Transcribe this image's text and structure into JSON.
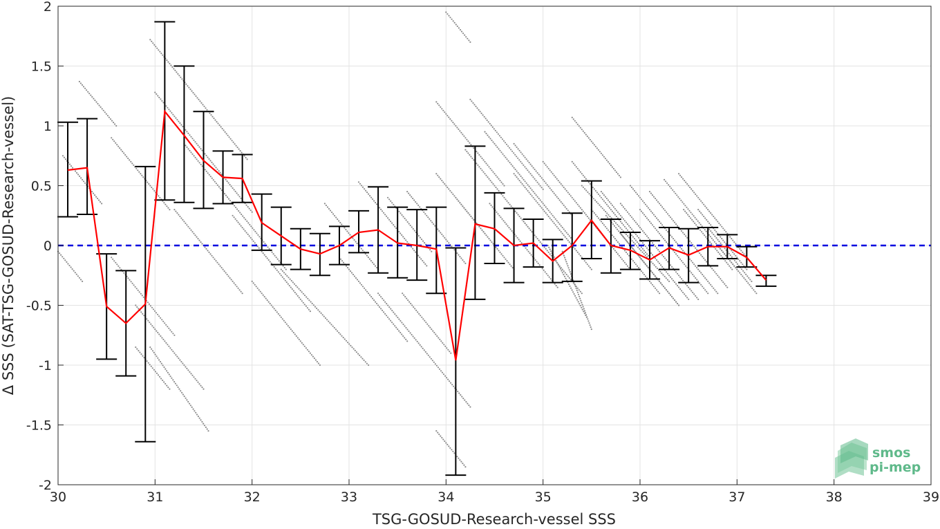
{
  "chart_data": {
    "type": "scatter",
    "xlabel": "TSG-GOSUD-Research-vessel SSS",
    "ylabel": "Δ SSS (SAT-TSG-GOSUD-Research-vessel)",
    "xlim": [
      30,
      39
    ],
    "ylim": [
      -2,
      2
    ],
    "xticks": [
      "30",
      "31",
      "32",
      "33",
      "34",
      "35",
      "36",
      "37",
      "38",
      "39"
    ],
    "yticks": [
      "-2",
      "-1.5",
      "-1",
      "-0.5",
      "0",
      "0.5",
      "1",
      "1.5",
      "2"
    ],
    "grid": true,
    "reference_line": {
      "y": 0,
      "style": "dashed",
      "color": "#0000e0"
    },
    "colors": {
      "mean": "#ff0000",
      "errorbar": "#000000",
      "scatter": "#8c8c8c"
    },
    "series": [
      {
        "type": "line-errorbar",
        "x": [
          30.1,
          30.3,
          30.5,
          30.7,
          30.9,
          31.1,
          31.3,
          31.5,
          31.7,
          31.9,
          32.1,
          32.3,
          32.5,
          32.7,
          32.9,
          33.1,
          33.3,
          33.5,
          33.7,
          33.9,
          34.1,
          34.3,
          34.5,
          34.7,
          34.9,
          35.1,
          35.3,
          35.5,
          35.7,
          35.9,
          36.1,
          36.3,
          36.5,
          36.7,
          36.9,
          37.1,
          37.3
        ],
        "mean": [
          0.63,
          0.65,
          -0.51,
          -0.65,
          -0.49,
          1.12,
          0.92,
          0.71,
          0.57,
          0.56,
          0.19,
          0.08,
          -0.03,
          -0.07,
          0.0,
          0.11,
          0.13,
          0.02,
          0.0,
          -0.03,
          -0.96,
          0.18,
          0.14,
          0.0,
          0.02,
          -0.13,
          0.0,
          0.21,
          0.0,
          -0.04,
          -0.12,
          -0.02,
          -0.08,
          -0.01,
          -0.01,
          -0.1,
          -0.29
        ],
        "low": [
          0.24,
          0.26,
          -0.95,
          -1.09,
          -1.64,
          0.38,
          0.36,
          0.31,
          0.35,
          0.36,
          -0.04,
          -0.16,
          -0.2,
          -0.25,
          -0.16,
          -0.06,
          -0.23,
          -0.27,
          -0.29,
          -0.4,
          -1.92,
          -0.45,
          -0.15,
          -0.31,
          -0.18,
          -0.31,
          -0.3,
          -0.11,
          -0.23,
          -0.2,
          -0.28,
          -0.2,
          -0.31,
          -0.17,
          -0.11,
          -0.18,
          -0.34
        ],
        "high": [
          1.03,
          1.06,
          -0.07,
          -0.21,
          0.66,
          1.87,
          1.5,
          1.12,
          0.79,
          0.76,
          0.43,
          0.32,
          0.14,
          0.1,
          0.16,
          0.29,
          0.49,
          0.32,
          0.3,
          0.32,
          -0.02,
          0.83,
          0.44,
          0.31,
          0.22,
          0.05,
          0.27,
          0.54,
          0.22,
          0.11,
          0.04,
          0.15,
          0.14,
          0.15,
          0.09,
          -0.01,
          -0.25
        ]
      }
    ],
    "scatter_tracks": [
      {
        "x0": 30.0,
        "y0": -0.05,
        "x1": 30.25,
        "y1": -0.3
      },
      {
        "x0": 30.05,
        "y0": 0.75,
        "x1": 30.45,
        "y1": 0.35
      },
      {
        "x0": 30.22,
        "y0": 1.37,
        "x1": 30.6,
        "y1": 1.0
      },
      {
        "x0": 30.55,
        "y0": 0.9,
        "x1": 31.15,
        "y1": 0.3
      },
      {
        "x0": 30.55,
        "y0": -0.1,
        "x1": 31.2,
        "y1": -0.75
      },
      {
        "x0": 30.8,
        "y0": -0.85,
        "x1": 31.15,
        "y1": -1.2
      },
      {
        "x0": 30.95,
        "y0": 1.72,
        "x1": 31.95,
        "y1": 0.72
      },
      {
        "x0": 31.0,
        "y0": 1.28,
        "x1": 32.0,
        "y1": 0.28
      },
      {
        "x0": 30.8,
        "y0": -0.5,
        "x1": 31.5,
        "y1": -1.2
      },
      {
        "x0": 30.95,
        "y0": -0.85,
        "x1": 31.55,
        "y1": -1.55
      },
      {
        "x0": 31.3,
        "y0": 0.85,
        "x1": 32.35,
        "y1": -0.2
      },
      {
        "x0": 31.2,
        "y0": 0.3,
        "x1": 31.9,
        "y1": -0.4
      },
      {
        "x0": 31.8,
        "y0": 0.25,
        "x1": 32.6,
        "y1": -0.55
      },
      {
        "x0": 32.0,
        "y0": -0.3,
        "x1": 32.7,
        "y1": -1.0
      },
      {
        "x0": 32.3,
        "y0": -0.2,
        "x1": 33.2,
        "y1": -1.0
      },
      {
        "x0": 32.75,
        "y0": 0.35,
        "x1": 33.3,
        "y1": -0.2
      },
      {
        "x0": 32.9,
        "y0": -0.1,
        "x1": 33.6,
        "y1": -0.8
      },
      {
        "x0": 33.1,
        "y0": 0.53,
        "x1": 33.8,
        "y1": -0.17
      },
      {
        "x0": 33.4,
        "y0": 0.4,
        "x1": 33.85,
        "y1": -0.05
      },
      {
        "x0": 33.6,
        "y0": 0.45,
        "x1": 34.2,
        "y1": -0.15
      },
      {
        "x0": 33.3,
        "y0": -0.4,
        "x1": 34.25,
        "y1": -1.35
      },
      {
        "x0": 33.55,
        "y0": -0.4,
        "x1": 34.05,
        "y1": -0.9
      },
      {
        "x0": 34.0,
        "y0": 1.95,
        "x1": 34.25,
        "y1": 1.7
      },
      {
        "x0": 33.9,
        "y0": -1.55,
        "x1": 34.2,
        "y1": -1.85
      },
      {
        "x0": 33.9,
        "y0": 1.2,
        "x1": 34.6,
        "y1": 0.5
      },
      {
        "x0": 33.9,
        "y0": 0.6,
        "x1": 34.4,
        "y1": 0.1
      },
      {
        "x0": 34.1,
        "y0": 0.4,
        "x1": 34.7,
        "y1": -0.2
      },
      {
        "x0": 34.25,
        "y0": 1.22,
        "x1": 35.0,
        "y1": 0.47
      },
      {
        "x0": 34.2,
        "y0": 0.8,
        "x1": 34.9,
        "y1": 0.1
      },
      {
        "x0": 34.4,
        "y0": 0.95,
        "x1": 35.3,
        "y1": 0.05
      },
      {
        "x0": 34.45,
        "y0": 0.35,
        "x1": 35.15,
        "y1": -0.35
      },
      {
        "x0": 34.7,
        "y0": 0.6,
        "x1": 35.5,
        "y1": -0.2
      },
      {
        "x0": 34.8,
        "y0": 0.2,
        "x1": 35.4,
        "y1": -0.4
      },
      {
        "x0": 35.0,
        "y0": 0.7,
        "x1": 35.9,
        "y1": -0.2
      },
      {
        "x0": 35.05,
        "y0": 0.0,
        "x1": 35.45,
        "y1": -0.6
      },
      {
        "x0": 35.2,
        "y0": -0.05,
        "x1": 35.5,
        "y1": -0.7
      },
      {
        "x0": 35.3,
        "y0": 1.07,
        "x1": 35.8,
        "y1": 0.57
      },
      {
        "x0": 35.3,
        "y0": 0.7,
        "x1": 36.1,
        "y1": -0.1
      },
      {
        "x0": 35.4,
        "y0": 0.5,
        "x1": 36.3,
        "y1": -0.3
      },
      {
        "x0": 35.5,
        "y0": 0.3,
        "x1": 36.2,
        "y1": -0.4
      },
      {
        "x0": 35.6,
        "y0": 0.45,
        "x1": 36.5,
        "y1": -0.45
      },
      {
        "x0": 35.65,
        "y0": 0.25,
        "x1": 36.4,
        "y1": -0.5
      },
      {
        "x0": 35.8,
        "y0": 0.35,
        "x1": 36.6,
        "y1": -0.45
      },
      {
        "x0": 35.9,
        "y0": 0.5,
        "x1": 36.8,
        "y1": -0.4
      },
      {
        "x0": 36.0,
        "y0": 0.3,
        "x1": 36.7,
        "y1": -0.4
      },
      {
        "x0": 36.1,
        "y0": 0.45,
        "x1": 36.9,
        "y1": -0.35
      },
      {
        "x0": 36.25,
        "y0": 0.55,
        "x1": 37.0,
        "y1": -0.2
      },
      {
        "x0": 36.4,
        "y0": 0.6,
        "x1": 37.1,
        "y1": -0.1
      },
      {
        "x0": 36.45,
        "y0": 0.3,
        "x1": 36.95,
        "y1": -0.2
      },
      {
        "x0": 36.6,
        "y0": 0.3,
        "x1": 37.1,
        "y1": -0.2
      },
      {
        "x0": 36.7,
        "y0": 0.15,
        "x1": 37.15,
        "y1": -0.3
      },
      {
        "x0": 36.8,
        "y0": 0.0,
        "x1": 37.2,
        "y1": -0.4
      },
      {
        "x0": 34.7,
        "y0": 0.85,
        "x1": 35.3,
        "y1": 0.25
      },
      {
        "x0": 35.8,
        "y0": 0.1,
        "x1": 36.4,
        "y1": -0.5
      }
    ]
  },
  "logo": {
    "line1": "smos",
    "line2": "pi-mep",
    "color": "#5fb98a"
  }
}
